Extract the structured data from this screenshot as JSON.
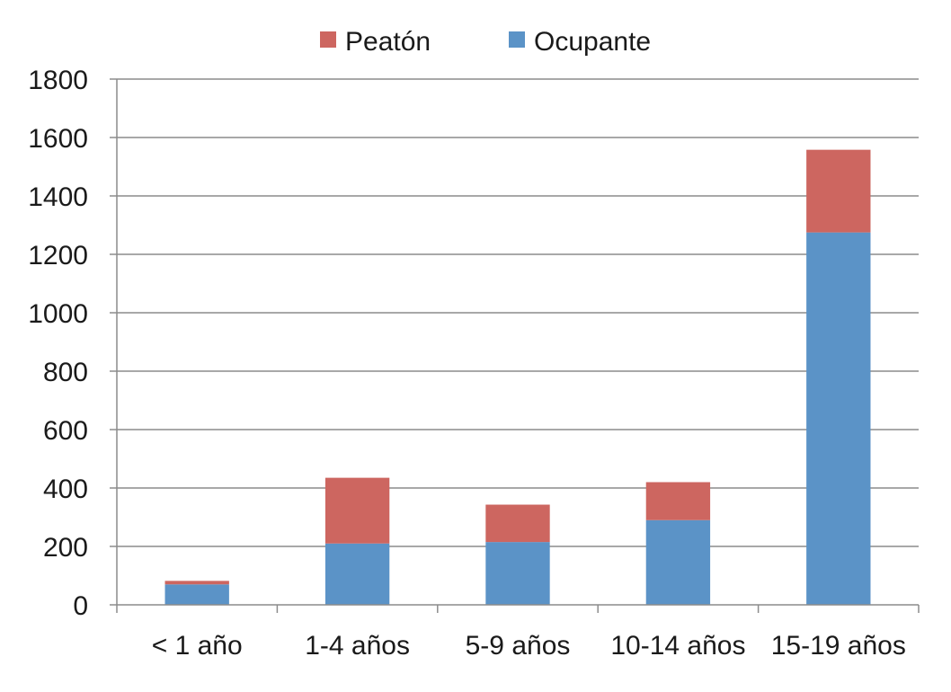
{
  "chart_data": {
    "type": "bar",
    "stacked": true,
    "categories": [
      "< 1 año",
      "1-4 años",
      "5-9 años",
      "10-14 años",
      "15-19 años"
    ],
    "series": [
      {
        "name": "Ocupante",
        "values": [
          70,
          210,
          215,
          290,
          1275
        ],
        "color": "#5b93c7"
      },
      {
        "name": "Peatón",
        "values": [
          12,
          225,
          128,
          130,
          283
        ],
        "color": "#cd6660"
      }
    ],
    "legend_order": [
      "Peatón",
      "Ocupante"
    ],
    "legend_position": "top",
    "yticks": [
      0,
      200,
      400,
      600,
      800,
      1000,
      1200,
      1400,
      1600,
      1800
    ],
    "ylim": [
      0,
      1800
    ],
    "grid": true,
    "title": "",
    "xlabel": "",
    "ylabel": ""
  }
}
